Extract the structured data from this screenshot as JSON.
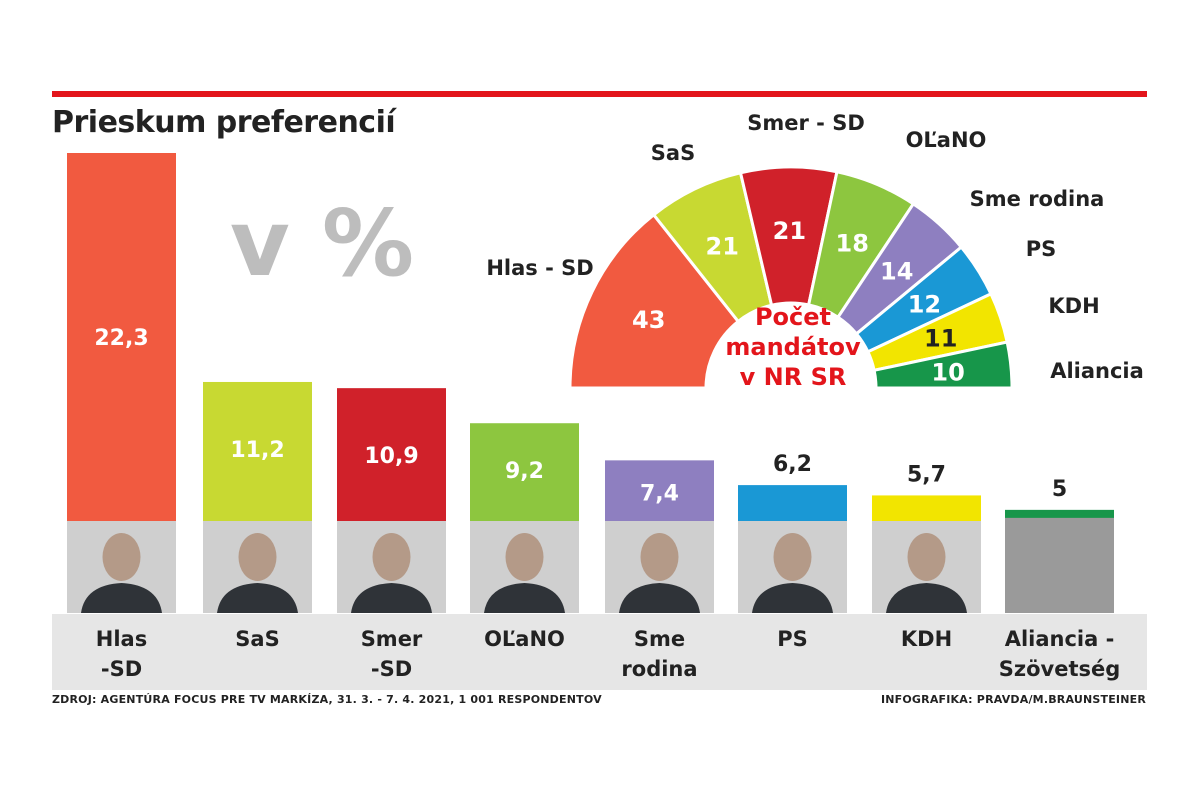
{
  "chart_data": [
    {
      "type": "bar",
      "title": "Prieskum preferencií",
      "unit_label": "v %",
      "categories": [
        "Hlas\n-SD",
        "SaS",
        "Smer\n-SD",
        "OĽaNO",
        "Sme\nrodina",
        "PS",
        "KDH",
        "Aliancia -\nSzövetség"
      ],
      "values": [
        22.3,
        11.2,
        10.9,
        9.2,
        7.4,
        6.2,
        5.7,
        5
      ],
      "value_labels": [
        "22,3",
        "11,2",
        "10,9",
        "9,2",
        "7,4",
        "6,2",
        "5,7",
        "5"
      ],
      "colors": [
        "#f15a40",
        "#c8d932",
        "#d0212a",
        "#8dc63f",
        "#8e7fc0",
        "#1a98d5",
        "#f2e500",
        "#17964a"
      ],
      "label_color": [
        "light",
        "light",
        "light",
        "light",
        "light",
        "dark",
        "dark",
        "dark"
      ]
    },
    {
      "type": "pie",
      "subtype": "half-donut",
      "center_label": "Počet mandátov v NR SR",
      "center_lines": [
        "Počet",
        "mandátov",
        "v NR SR"
      ],
      "labels": [
        "Hlas - SD",
        "SaS",
        "Smer - SD",
        "OĽaNO",
        "Sme rodina",
        "PS",
        "KDH",
        "Aliancia"
      ],
      "values": [
        43,
        21,
        21,
        18,
        14,
        12,
        11,
        10
      ],
      "colors": [
        "#f15a40",
        "#c8d932",
        "#d0212a",
        "#8dc63f",
        "#8e7fc0",
        "#1a98d5",
        "#f2e500",
        "#17964a"
      ],
      "value_text_color": [
        "light",
        "light",
        "light",
        "light",
        "light",
        "light",
        "dark",
        "light"
      ]
    }
  ],
  "footer": {
    "source": "ZDROJ: AGENTÚRA FOCUS PRE TV MARKÍZA, 31. 3. - 7. 4. 2021, 1 001 RESPONDENTOV",
    "credit": "INFOGRAFIKA: PRAVDA/M.BRAUNSTEINER"
  },
  "theme": {
    "accent": "#e3151b",
    "title": "#222222",
    "unit": "#bdbdbd",
    "label_band": "#e6e6e6",
    "center_label": "#e3151b"
  },
  "photos": [
    "portrait-hlas",
    "portrait-sas",
    "portrait-smer",
    "portrait-olano",
    "portrait-smerodina",
    "portrait-ps",
    "portrait-kdh",
    "placeholder-aliancia"
  ]
}
